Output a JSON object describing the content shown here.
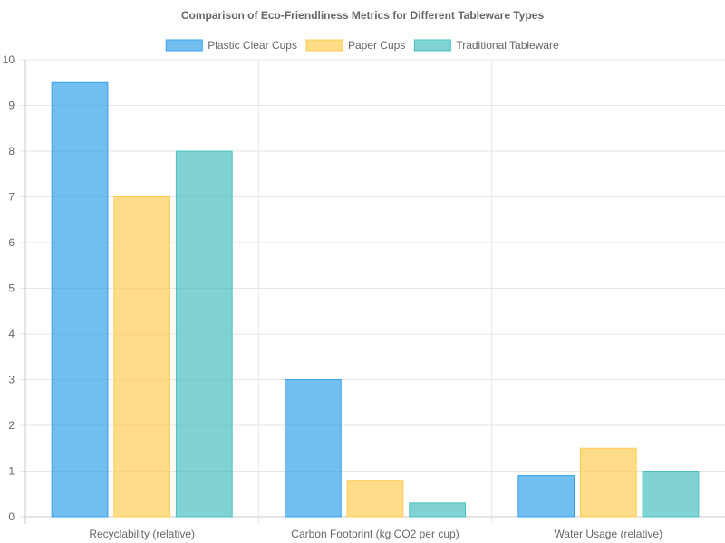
{
  "chart_data": {
    "type": "bar",
    "title": "Comparison of Eco-Friendliness Metrics for Different Tableware Types",
    "categories": [
      "Recyclability (relative)",
      "Carbon Footprint (kg CO2 per cup)",
      "Water Usage (relative)"
    ],
    "series": [
      {
        "name": "Plastic Clear Cups",
        "values": [
          9.5,
          3,
          0.9
        ],
        "color": "#36a2eb"
      },
      {
        "name": "Paper Cups",
        "values": [
          7,
          0.8,
          1.5
        ],
        "color": "#ffcd56"
      },
      {
        "name": "Traditional Tableware",
        "values": [
          8,
          0.3,
          1
        ],
        "color": "#4bc0c0"
      }
    ],
    "ylim": [
      0,
      10
    ],
    "yticks": [
      0,
      1,
      2,
      3,
      4,
      5,
      6,
      7,
      8,
      9,
      10
    ],
    "grid": true,
    "legend_position": "top-center"
  }
}
